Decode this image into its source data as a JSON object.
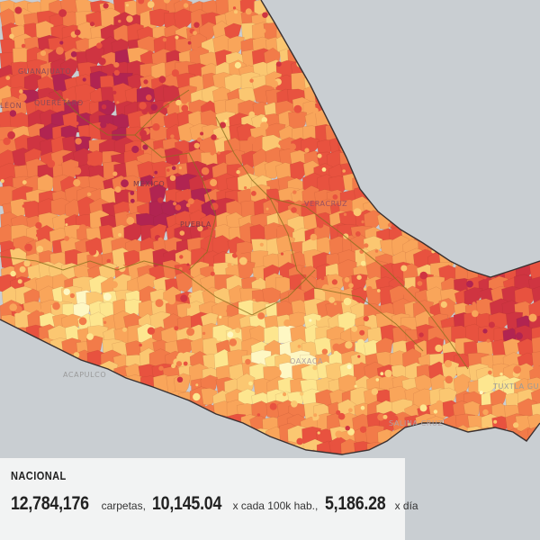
{
  "palette": [
    "#fef7c3",
    "#fde68f",
    "#fbc771",
    "#f9a55a",
    "#f27b49",
    "#e8523f",
    "#cf3441",
    "#b12451"
  ],
  "colors": {
    "land_background": "#c9ced2",
    "border": "#5c4a3a",
    "state_border": "#8a6f1f"
  },
  "labels": [
    {
      "key": "guanajuato",
      "text": "Guanajuato"
    },
    {
      "key": "queretaro",
      "text": "Querétaro"
    },
    {
      "key": "leon_fragment",
      "text": "Léon"
    },
    {
      "key": "mexico",
      "text": "México"
    },
    {
      "key": "puebla",
      "text": "Puebla"
    },
    {
      "key": "veracruz",
      "text": "Veracruz"
    },
    {
      "key": "acapulco",
      "text": "ACAPULCO"
    },
    {
      "key": "oaxaca",
      "text": "OAXACA"
    },
    {
      "key": "salina_cruz",
      "text": "Salina Cruz"
    },
    {
      "key": "tuxtla",
      "text": "TUXTLA GU"
    }
  ],
  "summary": {
    "title": "NACIONAL",
    "carpetas_value": "12,784,176",
    "carpetas_unit": "carpetas,",
    "rate_value": "10,145.04",
    "rate_unit": "x cada 100k hab.,",
    "daily_value": "5,186.28",
    "daily_unit": "x día"
  }
}
